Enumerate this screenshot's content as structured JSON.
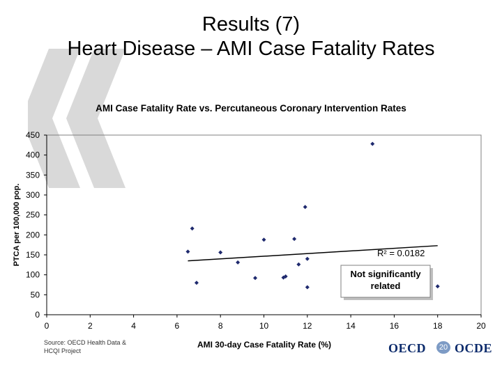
{
  "slide": {
    "title_line1": "Results (7)",
    "title_line2": "Heart Disease – AMI Case Fatality Rates",
    "source_line1": "Source: OECD Health Data &",
    "source_line2": "HCQI Project",
    "logo_left": "OECD",
    "logo_right": "OCDE",
    "page_number": "20"
  },
  "colors": {
    "marker": "#1f2a6e",
    "axis": "#000000",
    "grid": "#000000",
    "quote_mark": "#d9d9d9",
    "logo": "#0b2a6b"
  },
  "icons": {
    "quote": "quote-mark-icon",
    "logo": "oecd-logo-icon"
  },
  "chart_data": {
    "type": "scatter",
    "title": "AMI Case Fatality Rate vs. Percutaneous Coronary Intervention Rates",
    "xlabel": "AMI 30-day Case Fatality Rate (%)",
    "ylabel": "PTCA per 100,000 pop.",
    "xlim": [
      0,
      20
    ],
    "ylim": [
      0,
      450
    ],
    "xticks": [
      0,
      2,
      4,
      6,
      8,
      10,
      12,
      14,
      16,
      18,
      20
    ],
    "yticks": [
      0,
      50,
      100,
      150,
      200,
      250,
      300,
      350,
      400,
      450
    ],
    "grid": false,
    "points": [
      {
        "x": 6.5,
        "y": 158
      },
      {
        "x": 6.7,
        "y": 216
      },
      {
        "x": 6.9,
        "y": 80
      },
      {
        "x": 8.0,
        "y": 156
      },
      {
        "x": 8.8,
        "y": 131
      },
      {
        "x": 9.6,
        "y": 92
      },
      {
        "x": 10.0,
        "y": 188
      },
      {
        "x": 10.9,
        "y": 93
      },
      {
        "x": 11.0,
        "y": 96
      },
      {
        "x": 11.4,
        "y": 190
      },
      {
        "x": 11.6,
        "y": 126
      },
      {
        "x": 11.9,
        "y": 270
      },
      {
        "x": 12.0,
        "y": 69
      },
      {
        "x": 12.0,
        "y": 140
      },
      {
        "x": 15.0,
        "y": 428
      },
      {
        "x": 18.0,
        "y": 71
      }
    ],
    "trendline": {
      "x": [
        6.5,
        18.0
      ],
      "y": [
        135,
        173
      ]
    },
    "annotations": [
      {
        "text": "R² = 0.0182"
      },
      {
        "text_line1": "Not significantly",
        "text_line2": "related"
      }
    ]
  }
}
